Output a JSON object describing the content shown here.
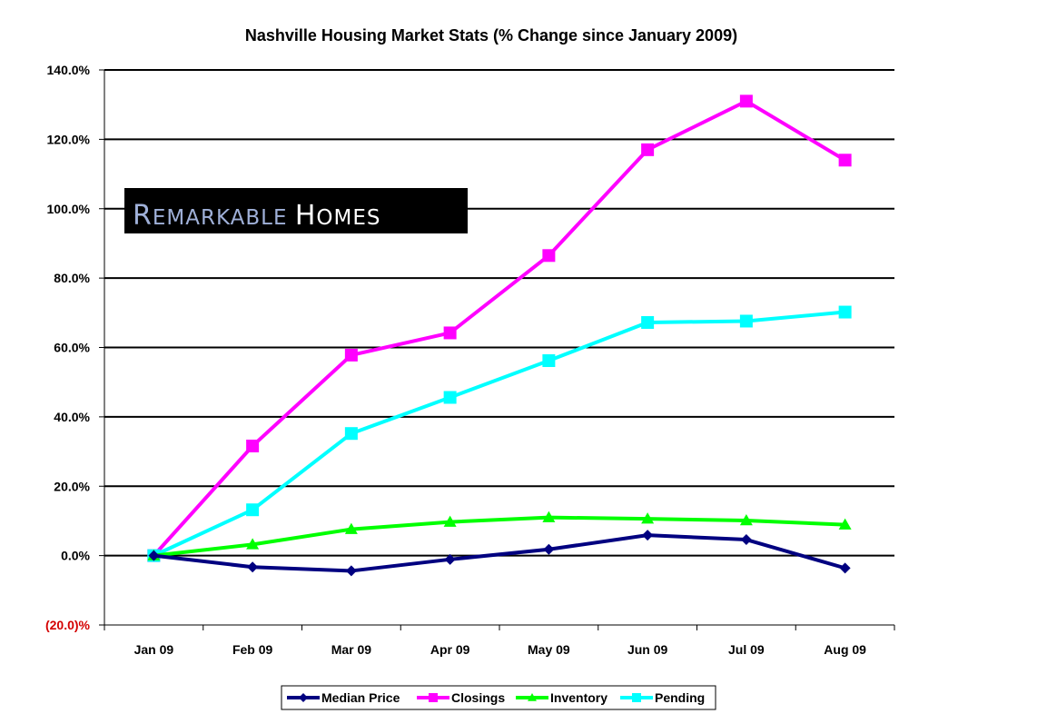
{
  "chart_data": {
    "type": "line",
    "title": "Nashville Housing Market Stats (% Change since January 2009)",
    "categories": [
      "Jan 09",
      "Feb 09",
      "Mar 09",
      "Apr 09",
      "May 09",
      "Jun 09",
      "Jul 09",
      "Aug 09"
    ],
    "ylim": [
      -20,
      140
    ],
    "yticks": [
      -20,
      0,
      20,
      40,
      60,
      80,
      100,
      120,
      140
    ],
    "ytick_labels": [
      "(20.0)%",
      "0.0%",
      "20.0%",
      "40.0%",
      "60.0%",
      "80.0%",
      "100.0%",
      "120.0%",
      "140.0%"
    ],
    "grid": true,
    "legend_position": "bottom",
    "series": [
      {
        "name": "Median Price",
        "color": "#000080",
        "marker": "diamond",
        "values": [
          0,
          -3.3,
          -4.4,
          -1.1,
          1.8,
          5.9,
          4.6,
          -3.6
        ]
      },
      {
        "name": "Closings",
        "color": "#ff00ff",
        "marker": "square",
        "values": [
          0,
          31.6,
          57.8,
          64.2,
          86.5,
          117.0,
          131.0,
          114.0
        ]
      },
      {
        "name": "Inventory",
        "color": "#00ff00",
        "marker": "triangle",
        "values": [
          0,
          3.2,
          7.6,
          9.7,
          11.0,
          10.6,
          10.1,
          8.9
        ]
      },
      {
        "name": "Pending",
        "color": "#00ffff",
        "marker": "square",
        "values": [
          0,
          13.2,
          35.2,
          45.6,
          56.2,
          67.2,
          67.6,
          70.2
        ]
      }
    ]
  },
  "logo": {
    "text": "REMARKABLE HOMES"
  }
}
